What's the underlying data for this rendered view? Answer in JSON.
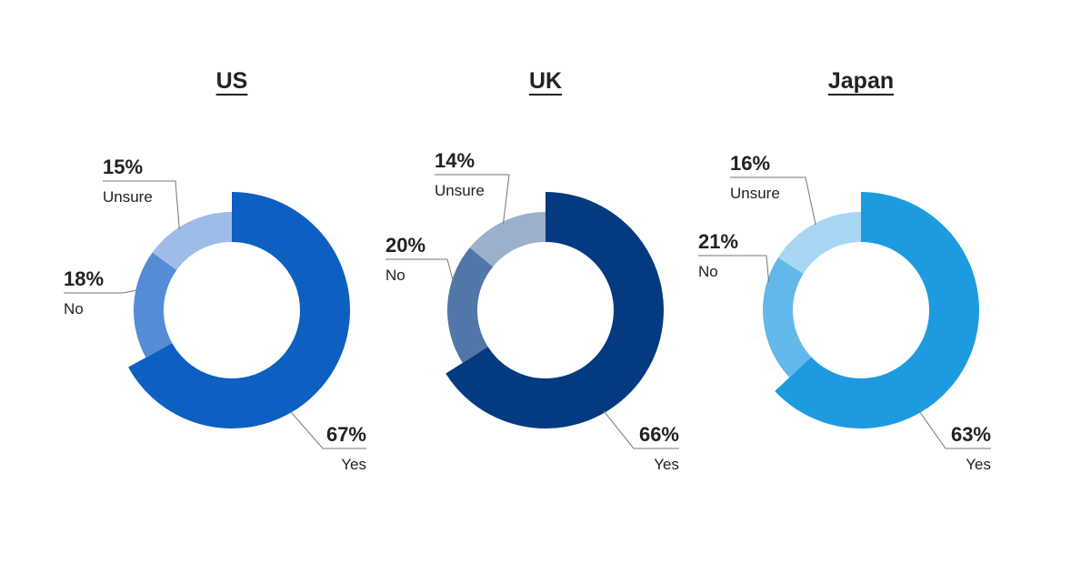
{
  "chart_data": [
    {
      "type": "pie",
      "title": "US",
      "categories": [
        "Yes",
        "No",
        "Unsure"
      ],
      "values": [
        67,
        18,
        15
      ],
      "value_labels": [
        "67%",
        "18%",
        "15%"
      ],
      "colors": [
        "#0d5fc2",
        "#558cd6",
        "#9dbde8"
      ]
    },
    {
      "type": "pie",
      "title": "UK",
      "categories": [
        "Yes",
        "No",
        "Unsure"
      ],
      "values": [
        66,
        20,
        14
      ],
      "value_labels": [
        "66%",
        "20%",
        "14%"
      ],
      "colors": [
        "#043a80",
        "#5176a8",
        "#9bb0cc"
      ]
    },
    {
      "type": "pie",
      "title": "Japan",
      "categories": [
        "Yes",
        "No",
        "Unsure"
      ],
      "values": [
        63,
        21,
        16
      ],
      "value_labels": [
        "63%",
        "21%",
        "16%"
      ],
      "colors": [
        "#1e9be0",
        "#62b8ea",
        "#a7d7f4"
      ]
    }
  ]
}
